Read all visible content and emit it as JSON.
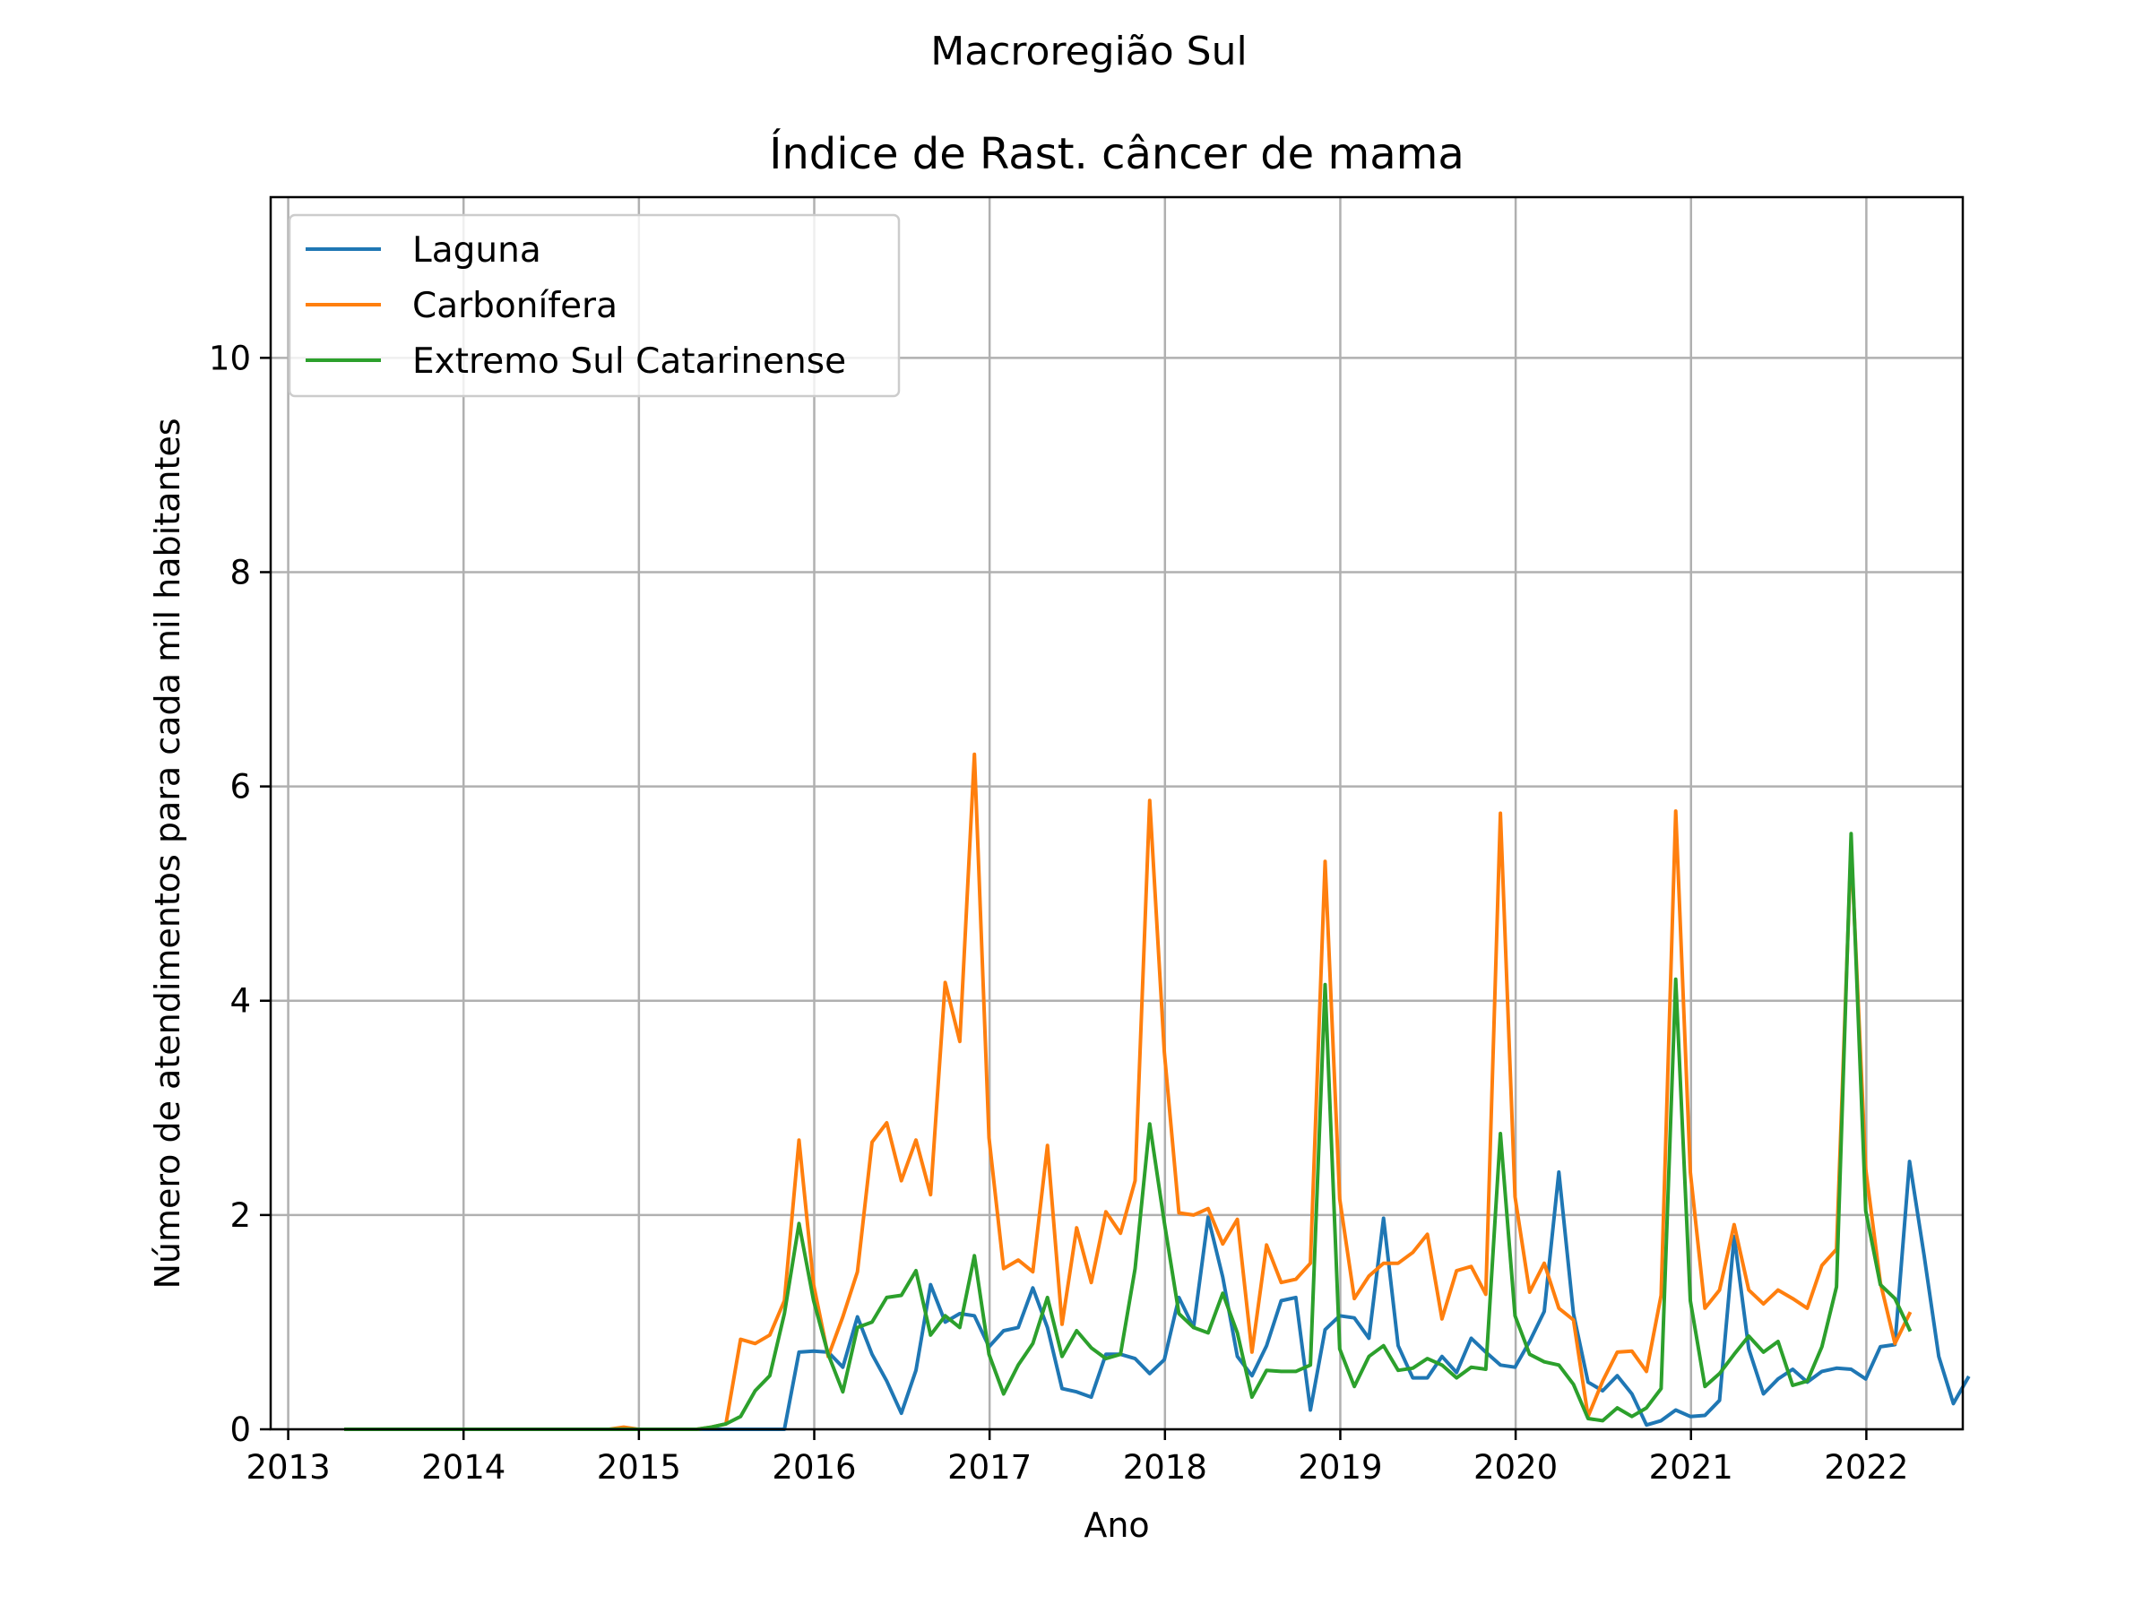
{
  "chart_data": {
    "type": "line",
    "suptitle": "Macroregião Sul",
    "title": "Índice de Rast. câncer de mama",
    "xlabel": "Ano",
    "ylabel": "Número de atendimentos para cada mil habitantes",
    "xlim": [
      2012.9,
      2022.55
    ],
    "ylim": [
      0,
      11.5
    ],
    "xticks": [
      2013,
      2014,
      2015,
      2016,
      2017,
      2018,
      2019,
      2020,
      2021,
      2022
    ],
    "xtick_labels": [
      "2013",
      "2014",
      "2015",
      "2016",
      "2017",
      "2018",
      "2019",
      "2020",
      "2021",
      "2022"
    ],
    "yticks": [
      0,
      2,
      4,
      6,
      8,
      10
    ],
    "ytick_labels": [
      "0",
      "2",
      "4",
      "6",
      "8",
      "10"
    ],
    "grid": true,
    "legend_position": "top-left",
    "x_start": 2013.33,
    "x_step": 0.08333,
    "series": [
      {
        "name": "Laguna",
        "color": "#1f77b4",
        "values": [
          0,
          0,
          0,
          0,
          0,
          0,
          0,
          0,
          0,
          0,
          0,
          0,
          0,
          0,
          0,
          0,
          0,
          0,
          0,
          0,
          0,
          0,
          0,
          0,
          0,
          0,
          0,
          0,
          0,
          0,
          0,
          0.72,
          0.73,
          0.72,
          0.58,
          1.05,
          0.7,
          0.45,
          0.15,
          0.55,
          1.35,
          1.0,
          1.08,
          1.06,
          0.77,
          0.92,
          0.95,
          1.32,
          0.95,
          0.38,
          0.35,
          0.3,
          0.7,
          0.7,
          0.66,
          0.52,
          0.65,
          1.23,
          0.95,
          1.98,
          1.42,
          0.68,
          0.5,
          0.78,
          1.2,
          1.23,
          0.18,
          0.93,
          1.06,
          1.04,
          0.85,
          1.97,
          0.78,
          0.48,
          0.48,
          0.68,
          0.53,
          0.85,
          0.72,
          0.6,
          0.58,
          0.82,
          1.1,
          2.4,
          1.08,
          0.44,
          0.36,
          0.5,
          0.33,
          0.04,
          0.08,
          0.18,
          0.12,
          0.13,
          0.27,
          1.8,
          0.75,
          0.33,
          0.47,
          0.56,
          0.44,
          0.54,
          0.57,
          0.56,
          0.47,
          0.77,
          0.79,
          2.5,
          1.62,
          0.68,
          0.24,
          0.48
        ]
      },
      {
        "name": "Carbonífera",
        "color": "#ff7f0e",
        "values": [
          0,
          0,
          0,
          0,
          0,
          0,
          0,
          0,
          0,
          0,
          0,
          0,
          0,
          0,
          0,
          0,
          0,
          0,
          0,
          0.02,
          0,
          0,
          0,
          0,
          0,
          0.02,
          0.05,
          0.84,
          0.8,
          0.88,
          1.2,
          2.7,
          1.35,
          0.68,
          1.05,
          1.47,
          2.68,
          2.86,
          2.32,
          2.7,
          2.19,
          4.17,
          3.62,
          6.3,
          2.72,
          1.5,
          1.58,
          1.47,
          2.65,
          0.98,
          1.88,
          1.37,
          2.03,
          1.83,
          2.32,
          5.87,
          3.52,
          2.02,
          2.0,
          2.06,
          1.73,
          1.96,
          0.72,
          1.72,
          1.37,
          1.4,
          1.55,
          5.3,
          2.15,
          1.22,
          1.43,
          1.55,
          1.55,
          1.65,
          1.82,
          1.03,
          1.48,
          1.52,
          1.26,
          5.75,
          2.17,
          1.28,
          1.55,
          1.13,
          1.02,
          0.12,
          0.45,
          0.72,
          0.73,
          0.54,
          1.25,
          5.77,
          2.4,
          1.13,
          1.3,
          1.91,
          1.3,
          1.17,
          1.3,
          1.22,
          1.13,
          1.53,
          1.68,
          5.45,
          2.43,
          1.37,
          0.8,
          1.08
        ]
      },
      {
        "name": "Extremo Sul Catarinense",
        "color": "#2ca02c",
        "values": [
          0,
          0,
          0,
          0,
          0,
          0,
          0,
          0,
          0,
          0,
          0,
          0,
          0,
          0,
          0,
          0,
          0,
          0,
          0,
          0,
          0,
          0,
          0,
          0,
          0,
          0.02,
          0.05,
          0.12,
          0.36,
          0.5,
          1.08,
          1.92,
          1.2,
          0.7,
          0.35,
          0.95,
          1.0,
          1.23,
          1.25,
          1.48,
          0.88,
          1.06,
          0.95,
          1.62,
          0.7,
          0.33,
          0.6,
          0.8,
          1.23,
          0.68,
          0.92,
          0.76,
          0.66,
          0.7,
          1.5,
          2.85,
          1.93,
          1.08,
          0.95,
          0.9,
          1.27,
          0.9,
          0.3,
          0.55,
          0.54,
          0.54,
          0.6,
          4.15,
          0.75,
          0.4,
          0.68,
          0.78,
          0.55,
          0.57,
          0.66,
          0.6,
          0.48,
          0.58,
          0.56,
          2.76,
          1.06,
          0.7,
          0.63,
          0.6,
          0.42,
          0.1,
          0.08,
          0.2,
          0.12,
          0.2,
          0.38,
          4.2,
          1.2,
          0.4,
          0.52,
          0.7,
          0.87,
          0.72,
          0.82,
          0.41,
          0.45,
          0.77,
          1.33,
          5.56,
          2.04,
          1.35,
          1.22,
          0.93
        ]
      }
    ]
  }
}
